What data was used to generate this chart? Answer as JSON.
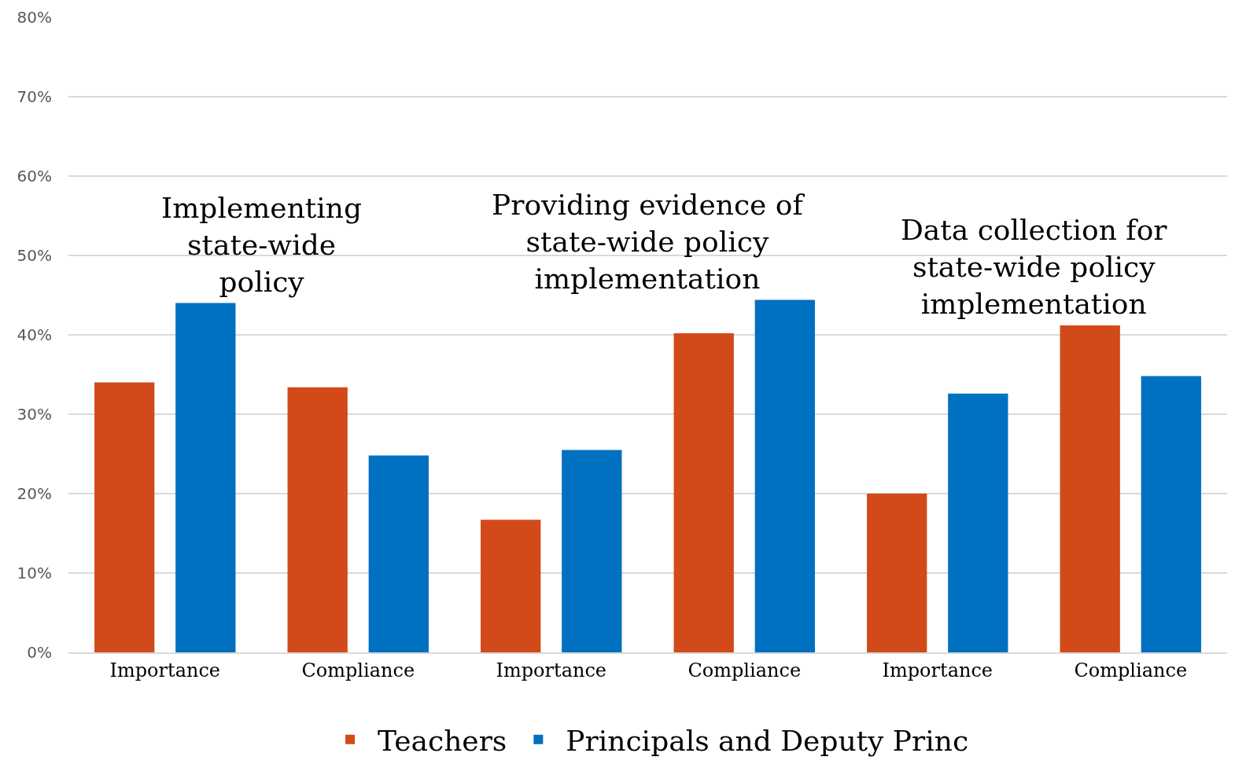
{
  "chart_data": {
    "type": "bar",
    "categories": [
      "Importance",
      "Compliance",
      "Importance",
      "Compliance",
      "Importance",
      "Compliance"
    ],
    "series": [
      {
        "name": "Teachers",
        "color": "#d24a19",
        "values": [
          34,
          33.4,
          16.7,
          40.2,
          20,
          41.2
        ]
      },
      {
        "name": "Principals and Deputy Princ",
        "color": "#0070c0",
        "values": [
          44,
          24.8,
          25.5,
          44.4,
          32.6,
          34.8
        ]
      }
    ],
    "ylim": [
      0,
      80
    ],
    "yticks": [
      {
        "value": 0,
        "label": "0%"
      },
      {
        "value": 10,
        "label": "10%"
      },
      {
        "value": 20,
        "label": "20%"
      },
      {
        "value": 30,
        "label": "30%"
      },
      {
        "value": 40,
        "label": "40%"
      },
      {
        "value": 50,
        "label": "50%"
      },
      {
        "value": 60,
        "label": "60%"
      },
      {
        "value": 70,
        "label": "70%"
      },
      {
        "value": 80,
        "label": "80%"
      }
    ],
    "annotations": [
      "Implementing\nstate-wide\npolicy",
      "Providing evidence of\nstate-wide policy\nimplementation",
      "Data collection for\nstate-wide policy\nimplementation"
    ],
    "grid": "y",
    "legend": "bottom"
  }
}
